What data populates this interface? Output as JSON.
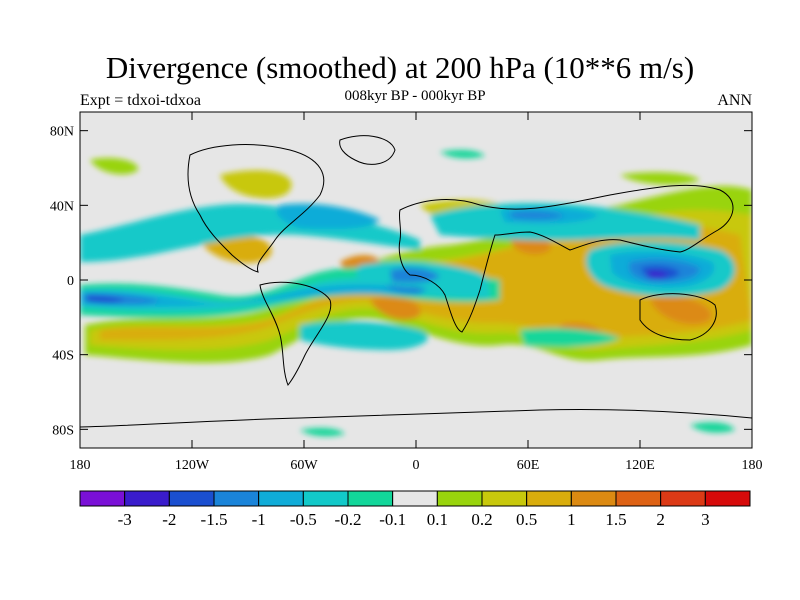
{
  "header": {
    "title": "Divergence (smoothed) at 200 hPa (10**6 m/s)",
    "experiment": "Expt = tdxoi-tdxoa",
    "period": "008kyr BP - 000kyr BP",
    "season": "ANN"
  },
  "map": {
    "projection": "cylindrical-equidistant",
    "lon_range": [
      -180,
      180
    ],
    "lat_range": [
      -90,
      90
    ],
    "background_color": "#e6e6e6",
    "x_tick_labels": [
      "180",
      "120W",
      "60W",
      "0",
      "60E",
      "120E",
      "180"
    ],
    "y_tick_labels": [
      "80N",
      "40N",
      "0",
      "40S",
      "80S"
    ],
    "features": [
      {
        "region": "west tropical Pacific / maritime continent",
        "sign": "convergence",
        "peak": -3
      },
      {
        "region": "central-east equatorial Pacific",
        "sign": "convergence",
        "peak": -1.5
      },
      {
        "region": "equatorial Atlantic / Gulf of Guinea",
        "sign": "convergence",
        "peak": -2
      },
      {
        "region": "South Atlantic",
        "sign": "divergence",
        "peak": 1
      },
      {
        "region": "Indian Ocean / Australia",
        "sign": "divergence",
        "peak": 0.5
      },
      {
        "region": "North Africa / Arabia",
        "sign": "divergence",
        "peak": 1
      }
    ]
  },
  "colorbar": {
    "labels": [
      "-3",
      "-2",
      "-1.5",
      "-1",
      "-0.5",
      "-0.2",
      "-0.1",
      "0.1",
      "0.2",
      "0.5",
      "1",
      "1.5",
      "2",
      "3"
    ],
    "colors": [
      "#7a10d6",
      "#3a1ccc",
      "#1a4fd0",
      "#1a84d9",
      "#10acd8",
      "#12c9c9",
      "#12d69a",
      "#e6e6e6",
      "#99d40c",
      "#c8c80c",
      "#d9ad0c",
      "#dc8a12",
      "#de6214",
      "#dc3a16",
      "#d60a0a"
    ]
  }
}
